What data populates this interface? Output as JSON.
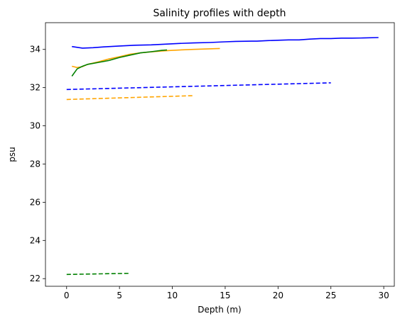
{
  "chart_data": {
    "type": "line",
    "title": "Salinity profiles with depth",
    "xlabel": "Depth (m)",
    "ylabel": "psu",
    "xlim": [
      -2,
      31
    ],
    "ylim": [
      21.6,
      35.4
    ],
    "xticks": [
      0,
      5,
      10,
      15,
      20,
      25,
      30
    ],
    "yticks": [
      22,
      24,
      26,
      28,
      30,
      32,
      34
    ],
    "grid": false,
    "series": [
      {
        "color": "#0000ff",
        "style": "solid",
        "x": [
          0.5,
          1.5,
          2.5,
          3.5,
          5,
          6.5,
          8,
          9.5,
          10.5,
          12,
          13.5,
          15,
          16,
          17.5,
          18,
          19,
          20,
          21,
          22,
          23,
          24,
          25,
          26,
          27,
          28,
          29.5
        ],
        "y": [
          34.15,
          34.07,
          34.09,
          34.13,
          34.18,
          34.22,
          34.24,
          34.28,
          34.31,
          34.34,
          34.36,
          34.4,
          34.42,
          34.43,
          34.43,
          34.46,
          34.48,
          34.5,
          34.5,
          34.54,
          34.57,
          34.57,
          34.59,
          34.59,
          34.6,
          34.62
        ]
      },
      {
        "color": "#ffa500",
        "style": "solid",
        "x": [
          0.5,
          1,
          1.5,
          2,
          3,
          4,
          5,
          6,
          7,
          8,
          9,
          10,
          11,
          12,
          13,
          14.5
        ],
        "y": [
          33.12,
          33.05,
          33.1,
          33.22,
          33.35,
          33.5,
          33.62,
          33.75,
          33.82,
          33.87,
          33.92,
          33.95,
          33.98,
          34.0,
          34.02,
          34.05
        ]
      },
      {
        "color": "#008000",
        "style": "solid",
        "x": [
          0.5,
          1,
          1.5,
          2,
          3,
          4,
          5,
          6,
          7,
          8,
          9,
          9.5
        ],
        "y": [
          32.6,
          32.98,
          33.12,
          33.22,
          33.32,
          33.42,
          33.58,
          33.7,
          33.82,
          33.88,
          33.95,
          33.97
        ]
      },
      {
        "color": "#0000ff",
        "style": "dashed",
        "x": [
          0,
          25
        ],
        "y": [
          31.9,
          32.25
        ]
      },
      {
        "color": "#ffa500",
        "style": "dashed",
        "x": [
          0,
          12
        ],
        "y": [
          31.38,
          31.58
        ]
      },
      {
        "color": "#008000",
        "style": "dashed",
        "x": [
          0,
          6
        ],
        "y": [
          22.22,
          22.28
        ]
      }
    ]
  }
}
